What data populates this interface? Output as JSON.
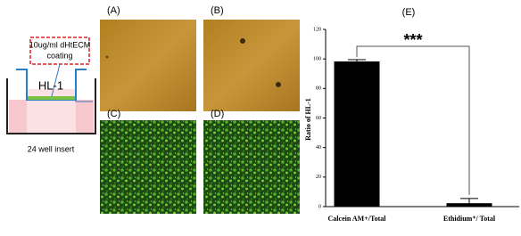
{
  "diagram": {
    "coating_label": [
      "10ug/ml dHtECM",
      "coating"
    ],
    "cell_label": "HL-1",
    "insert_label": "24 well insert"
  },
  "panels": [
    "(A)",
    "(B)",
    "(C)",
    "(D)"
  ],
  "chart_data": {
    "type": "bar",
    "panel_label": "(E)",
    "ylabel": "Ratio of HL-1",
    "categories": [
      "Calcein AM+/Total",
      "Ethidium⁺/ Total"
    ],
    "values": [
      98,
      2
    ],
    "errors": [
      1.5,
      3.5
    ],
    "color": "#000000",
    "ylim": [
      0,
      120
    ],
    "yticks": [
      0,
      20,
      40,
      60,
      80,
      100,
      120
    ],
    "annotation": "***"
  }
}
